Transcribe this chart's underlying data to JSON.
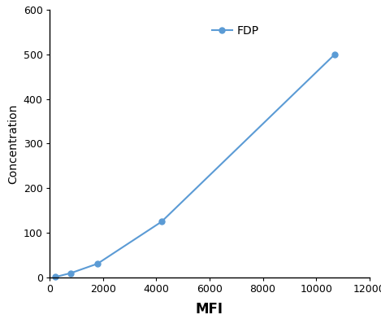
{
  "x": [
    200,
    800,
    1800,
    4200,
    10700
  ],
  "y": [
    1,
    10,
    31,
    125,
    500
  ],
  "line_color": "#5B9BD5",
  "marker": "o",
  "marker_size": 5,
  "legend_label": "FDP",
  "xlabel": "MFI",
  "ylabel": "Concentration",
  "xlim": [
    0,
    12000
  ],
  "ylim": [
    0,
    600
  ],
  "xticks": [
    0,
    2000,
    4000,
    6000,
    8000,
    10000,
    12000
  ],
  "yticks": [
    0,
    100,
    200,
    300,
    400,
    500,
    600
  ],
  "xlabel_fontsize": 12,
  "ylabel_fontsize": 10,
  "tick_fontsize": 9,
  "legend_fontsize": 10,
  "background_color": "#ffffff"
}
